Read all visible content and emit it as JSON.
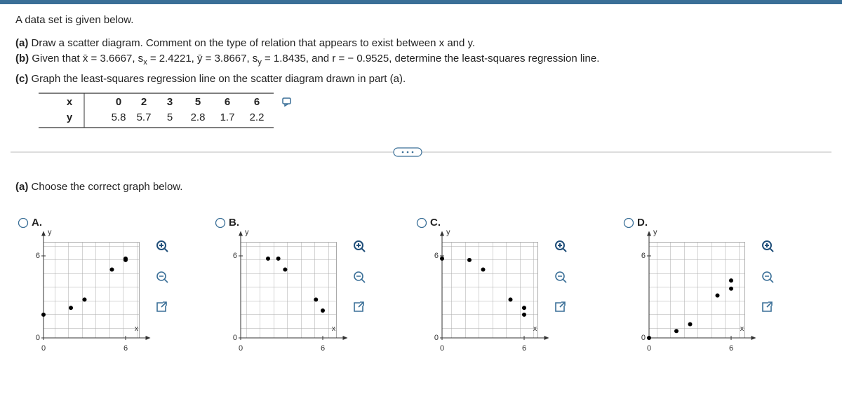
{
  "intro": "A data set is given below.",
  "part_a": {
    "label": "(a)",
    "text": "Draw a scatter diagram. Comment on the type of relation that appears to exist between x and y."
  },
  "part_b": {
    "label": "(b)",
    "segments": [
      {
        "text": "Given that x̄ = 3.6667, s"
      },
      {
        "sub": "x"
      },
      {
        "text": " = 2.4221, ȳ = 3.8667, s"
      },
      {
        "sub": "y"
      },
      {
        "text": " = 1.8435, and r = − 0.9525, determine the least-squares regression line."
      }
    ]
  },
  "part_c": {
    "label": "(c)",
    "text": "Graph the least-squares regression line on the scatter diagram drawn in part (a)."
  },
  "table": {
    "headers": [
      "x",
      "y"
    ],
    "rows": [
      [
        0,
        2,
        3,
        5,
        6,
        6
      ],
      [
        5.8,
        5.7,
        5.0,
        2.8,
        1.7,
        2.2
      ]
    ]
  },
  "question": {
    "label": "(a)",
    "text": "Choose the correct graph below."
  },
  "graph": {
    "xlim": [
      0,
      7
    ],
    "ylim": [
      0,
      7
    ],
    "xticks": [
      0,
      6
    ],
    "yticks": [
      0,
      6
    ],
    "x_label": "x",
    "y_label": "y"
  },
  "options": [
    {
      "label": "A.",
      "points": {
        "x": [
          0,
          2,
          3,
          5,
          6,
          6
        ],
        "y": [
          1.7,
          2.2,
          2.8,
          5.0,
          5.7,
          5.8
        ]
      }
    },
    {
      "label": "B.",
      "points": {
        "x": [
          2,
          2.75,
          3.25,
          5.5,
          6
        ],
        "y": [
          5.8,
          5.8,
          5.0,
          2.8,
          2.0
        ]
      }
    },
    {
      "label": "C.",
      "points": {
        "x": [
          0,
          2,
          3,
          5,
          6,
          6
        ],
        "y": [
          5.8,
          5.7,
          5.0,
          2.8,
          1.7,
          2.2
        ]
      }
    },
    {
      "label": "D.",
      "points": {
        "x": [
          0,
          2,
          3,
          5,
          6,
          6
        ],
        "y": [
          0,
          0.5,
          1.0,
          3.1,
          3.6,
          4.2
        ]
      }
    }
  ]
}
